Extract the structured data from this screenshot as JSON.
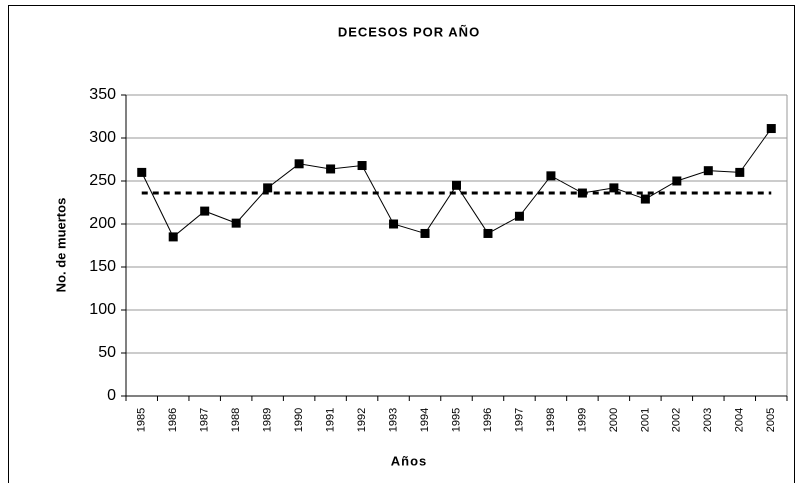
{
  "chart_data": {
    "type": "line",
    "title": "DECESOS POR AÑO",
    "x_label": "Años",
    "y_label": "No. de muertos",
    "categories": [
      "1985",
      "1986",
      "1987",
      "1988",
      "1989",
      "1990",
      "1991",
      "1992",
      "1993",
      "1994",
      "1995",
      "1996",
      "1997",
      "1998",
      "1999",
      "2000",
      "2001",
      "2002",
      "2003",
      "2004",
      "2005"
    ],
    "values": [
      260,
      185,
      215,
      201,
      242,
      270,
      264,
      268,
      200,
      189,
      245,
      189,
      209,
      256,
      236,
      242,
      229,
      250,
      262,
      260,
      311
    ],
    "color": "#000000",
    "marker": "square",
    "reference_line": {
      "value": 236,
      "style": "dashed",
      "color": "#000000"
    },
    "ylim": [
      0,
      350
    ],
    "yticks": [
      0,
      50,
      100,
      150,
      200,
      250,
      300,
      350
    ],
    "grid": true
  }
}
